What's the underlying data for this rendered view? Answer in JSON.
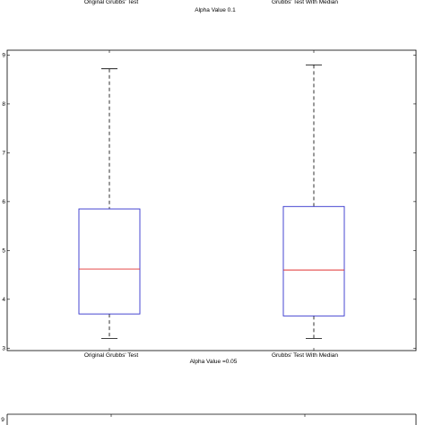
{
  "chart_data": [
    {
      "type": "box",
      "title": "Alpha Value 0.1",
      "categories": [
        "Original Grubbs' Test",
        "Grubbs' Test With Median"
      ],
      "ylim": [
        2.95,
        9.1
      ],
      "yticks": [
        "3",
        "4",
        "5",
        "6",
        "7",
        "8",
        "9"
      ],
      "grid": false,
      "boxes": [
        {
          "name": "Original Grubbs' Test",
          "min": 3.2,
          "q1": 3.7,
          "median": 4.62,
          "q3": 5.85,
          "max": 8.72
        },
        {
          "name": "Grubbs' Test With Median",
          "min": 3.2,
          "q1": 3.66,
          "median": 4.6,
          "q3": 5.9,
          "max": 8.8
        }
      ],
      "colors": {
        "box": "#3333cc",
        "median": "#e03030",
        "whisker": "#000000"
      }
    },
    {
      "type": "box",
      "title": "Alpha Value =0.05",
      "categories": [
        "Original Grubbs' Test",
        "Grubbs' Test With Median"
      ],
      "yticks": [
        "9"
      ]
    }
  ]
}
